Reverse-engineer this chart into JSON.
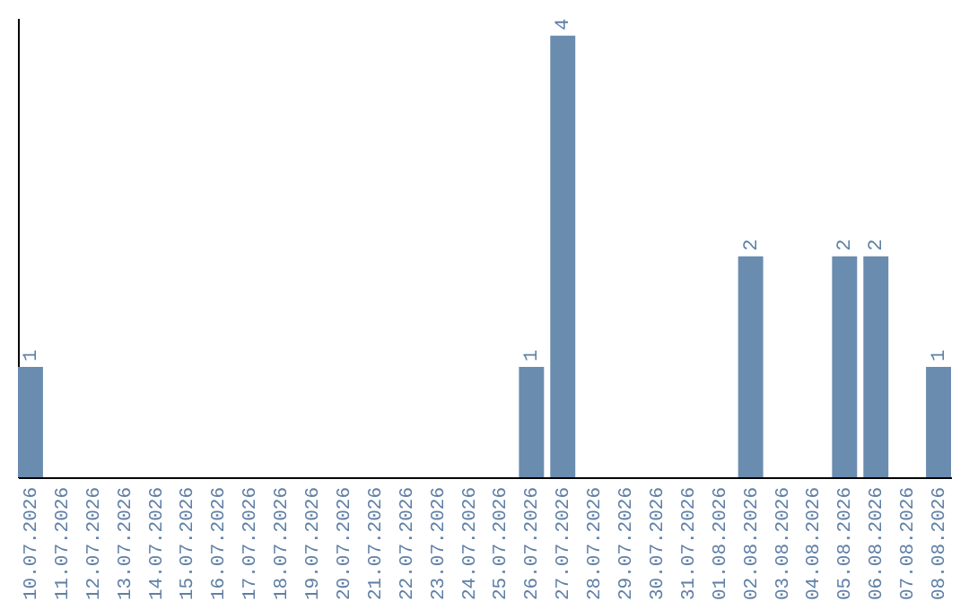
{
  "chart_data": {
    "type": "bar",
    "categories": [
      "10.07.2026",
      "11.07.2026",
      "12.07.2026",
      "13.07.2026",
      "14.07.2026",
      "15.07.2026",
      "16.07.2026",
      "17.07.2026",
      "18.07.2026",
      "19.07.2026",
      "20.07.2026",
      "21.07.2026",
      "22.07.2026",
      "23.07.2026",
      "24.07.2026",
      "25.07.2026",
      "26.07.2026",
      "27.07.2026",
      "28.07.2026",
      "29.07.2026",
      "30.07.2026",
      "31.07.2026",
      "01.08.2026",
      "02.08.2026",
      "03.08.2026",
      "04.08.2026",
      "05.08.2026",
      "06.08.2026",
      "07.08.2026",
      "08.08.2026"
    ],
    "values": [
      1,
      0,
      0,
      0,
      0,
      0,
      0,
      0,
      0,
      0,
      0,
      0,
      0,
      0,
      0,
      0,
      1,
      4,
      0,
      0,
      0,
      0,
      0,
      2,
      0,
      0,
      2,
      2,
      0,
      1
    ],
    "value_labels": [
      "1",
      null,
      null,
      null,
      null,
      null,
      null,
      null,
      null,
      null,
      null,
      null,
      null,
      null,
      null,
      null,
      "1",
      "4",
      null,
      null,
      null,
      null,
      null,
      "2",
      null,
      null,
      "2",
      "2",
      null,
      "1"
    ],
    "color": "#6a8caf",
    "ylim": [
      0,
      4.16
    ],
    "tick_labels": "x"
  }
}
